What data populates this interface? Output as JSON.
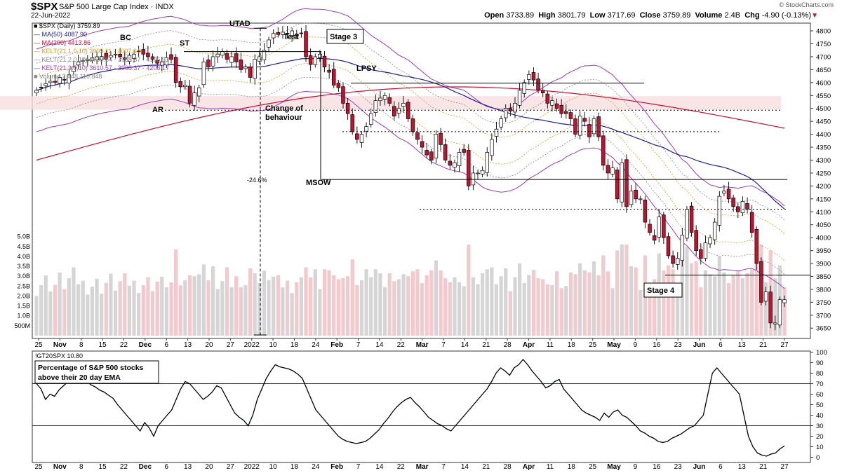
{
  "header": {
    "symbol": "$SPX",
    "name": "S&P 500 Large Cap Index",
    "exchange": "INDX",
    "date": "22-Jun-2022",
    "credit": "© StockCharts.com",
    "open_label": "Open",
    "open": "3733.89",
    "high_label": "High",
    "high": "3801.79",
    "low_label": "Low",
    "low": "3717.69",
    "close_label": "Close",
    "close": "3759.89",
    "volume_label": "Volume",
    "volume": "2.4B",
    "chg_label": "Chg",
    "chg": "-4.90 (-0.13%)"
  },
  "legend": [
    {
      "text": "■ $SPX (Daily) 3759.89",
      "color": "#000000"
    },
    {
      "text": "— MA(50) 4087.90",
      "color": "#1f1f8f"
    },
    {
      "text": "— MA(200) 4413.86",
      "color": "#c8102e"
    },
    {
      "text": "— KELT(21,1.0,10) 3909.11 - 4007.64",
      "color": "#c9a227"
    },
    {
      "text": "— KELT(21,2.0,10) 3709.84 - 3908.37 - 4106.91",
      "color": "#888888"
    },
    {
      "text": "— KELT(21,3.0,10) 3610.57 - 3908.37 - 4206.17",
      "color": "#9b3fb5"
    },
    {
      "text": "■ Volume 2,448,110,848",
      "color": "#888888"
    }
  ],
  "colors": {
    "up": "#ffffff",
    "down": "#c8102e",
    "ma50": "#1f1f8f",
    "ma200": "#c8102e",
    "kelt1": "#c9a227",
    "kelt2": "#888888",
    "kelt3": "#9b3fb5",
    "vol_up": "#d5d5d5",
    "vol_down": "#f2c9cc",
    "zone": "#f7dede"
  },
  "annotations": [
    "UTAD",
    "Test",
    "BC",
    "ST",
    "AR",
    "Stage 3",
    "LPSY",
    "Change of",
    "behaviour",
    "-24.6%",
    "MSOW",
    "Stage 4"
  ],
  "ind_legend": "!GT20SPX 10.80",
  "ind_title_1": "Percentage of S&P 500 stocks",
  "ind_title_2": "above their 20 day EMA",
  "chart_data": [
    {
      "type": "candlestick",
      "title": "$SPX S&P 500 Large Cap Index",
      "ylim": [
        3610,
        4830
      ],
      "y_ticks": [
        3650,
        3700,
        3750,
        3800,
        3850,
        3900,
        3950,
        4000,
        4050,
        4100,
        4150,
        4200,
        4250,
        4300,
        4350,
        4400,
        4450,
        4500,
        4550,
        4600,
        4650,
        4700,
        4750,
        4800
      ],
      "x_tick_labels": [
        "25",
        "Nov",
        "8",
        "15",
        "22",
        "Dec",
        "6",
        "13",
        "20",
        "27",
        "2022",
        "10",
        "18",
        "24",
        "Feb",
        "7",
        "14",
        "22",
        "Mar",
        "7",
        "14",
        "21",
        "28",
        "Apr",
        "11",
        "18",
        "25",
        "May",
        "9",
        "16",
        "23",
        "Jun",
        "6",
        "13",
        "21",
        "27"
      ],
      "horizontal_levels": [
        4720,
        4598,
        4493,
        4410,
        4225,
        4110,
        3855
      ],
      "closes": [
        4570,
        4580,
        4596,
        4605,
        4601,
        4620,
        4610,
        4630,
        4660,
        4680,
        4685,
        4690,
        4695,
        4700,
        4701,
        4690,
        4705,
        4710,
        4700,
        4690,
        4705,
        4710,
        4720,
        4710,
        4700,
        4690,
        4675,
        4680,
        4696,
        4690,
        4600,
        4584,
        4590,
        4520,
        4560,
        4580,
        4680,
        4660,
        4700,
        4710,
        4720,
        4690,
        4700,
        4680,
        4650,
        4660,
        4620,
        4690,
        4700,
        4725,
        4765,
        4790,
        4786,
        4795,
        4790,
        4800,
        4780,
        4790,
        4700,
        4670,
        4700,
        4710,
        4660,
        4640,
        4590,
        4580,
        4520,
        4480,
        4410,
        4380,
        4400,
        4430,
        4480,
        4530,
        4540,
        4550,
        4520,
        4470,
        4500,
        4520,
        4460,
        4410,
        4380,
        4350,
        4320,
        4300,
        4400,
        4360,
        4300,
        4280,
        4290,
        4330,
        4330,
        4200,
        4250,
        4250,
        4260,
        4330,
        4380,
        4420,
        4460,
        4500,
        4490,
        4520,
        4570,
        4600,
        4631,
        4610,
        4570,
        4560,
        4520,
        4530,
        4500,
        4480,
        4480,
        4460,
        4400,
        4470,
        4450,
        4390,
        4460,
        4390,
        4280,
        4250,
        4270,
        4150,
        4290,
        4120,
        4180,
        4150,
        4150,
        4060,
        4020,
        3990,
        4080,
        4000,
        3930,
        3900,
        3920,
        4010,
        4110,
        4020,
        3950,
        3920,
        3980,
        4000,
        4060,
        4160,
        4180,
        4150,
        4120,
        4100,
        4140,
        4110,
        4020,
        3900,
        3750,
        3790,
        3670,
        3670,
        3760,
        3759.89
      ],
      "volume_ylim": [
        0,
        5200000000
      ],
      "volume_ticks": [
        "500M",
        "1.0B",
        "1.5B",
        "2.0B",
        "2.5B",
        "3.0B",
        "3.5B",
        "4.0B",
        "4.5B",
        "5.0B"
      ]
    },
    {
      "type": "line",
      "title": "Percentage of S&P 500 stocks above their 20 day EMA",
      "ylim": [
        -5,
        101
      ],
      "y_ticks": [
        0,
        10,
        20,
        30,
        40,
        50,
        60,
        70,
        80,
        90,
        100
      ],
      "reference_lines": [
        70,
        30
      ],
      "values": [
        70,
        65,
        55,
        60,
        58,
        64,
        68,
        72,
        75,
        72,
        70,
        73,
        69,
        67,
        64,
        62,
        59,
        56,
        50,
        45,
        40,
        35,
        30,
        25,
        33,
        28,
        20,
        30,
        35,
        40,
        45,
        55,
        65,
        72,
        70,
        65,
        60,
        55,
        58,
        62,
        68,
        66,
        58,
        50,
        42,
        38,
        35,
        30,
        40,
        55,
        65,
        75,
        82,
        88,
        86,
        85,
        84,
        82,
        79,
        75,
        65,
        55,
        45,
        40,
        35,
        30,
        25,
        20,
        17,
        15,
        14,
        13,
        14,
        15,
        18,
        22,
        26,
        32,
        37,
        43,
        48,
        52,
        55,
        57,
        52,
        48,
        43,
        38,
        35,
        32,
        30,
        27,
        25,
        30,
        35,
        40,
        45,
        50,
        55,
        60,
        65,
        72,
        80,
        85,
        82,
        78,
        85,
        88,
        93,
        88,
        82,
        77,
        72,
        66,
        68,
        72,
        74,
        65,
        60,
        55,
        50,
        45,
        42,
        40,
        38,
        35,
        42,
        38,
        43,
        45,
        40,
        38,
        34,
        30,
        25,
        23,
        20,
        18,
        15,
        14,
        15,
        18,
        20,
        22,
        25,
        28,
        30,
        35,
        40,
        60,
        80,
        85,
        80,
        75,
        70,
        65,
        60,
        40,
        20,
        10,
        4,
        2,
        1,
        3,
        4,
        8,
        10.8
      ]
    }
  ]
}
